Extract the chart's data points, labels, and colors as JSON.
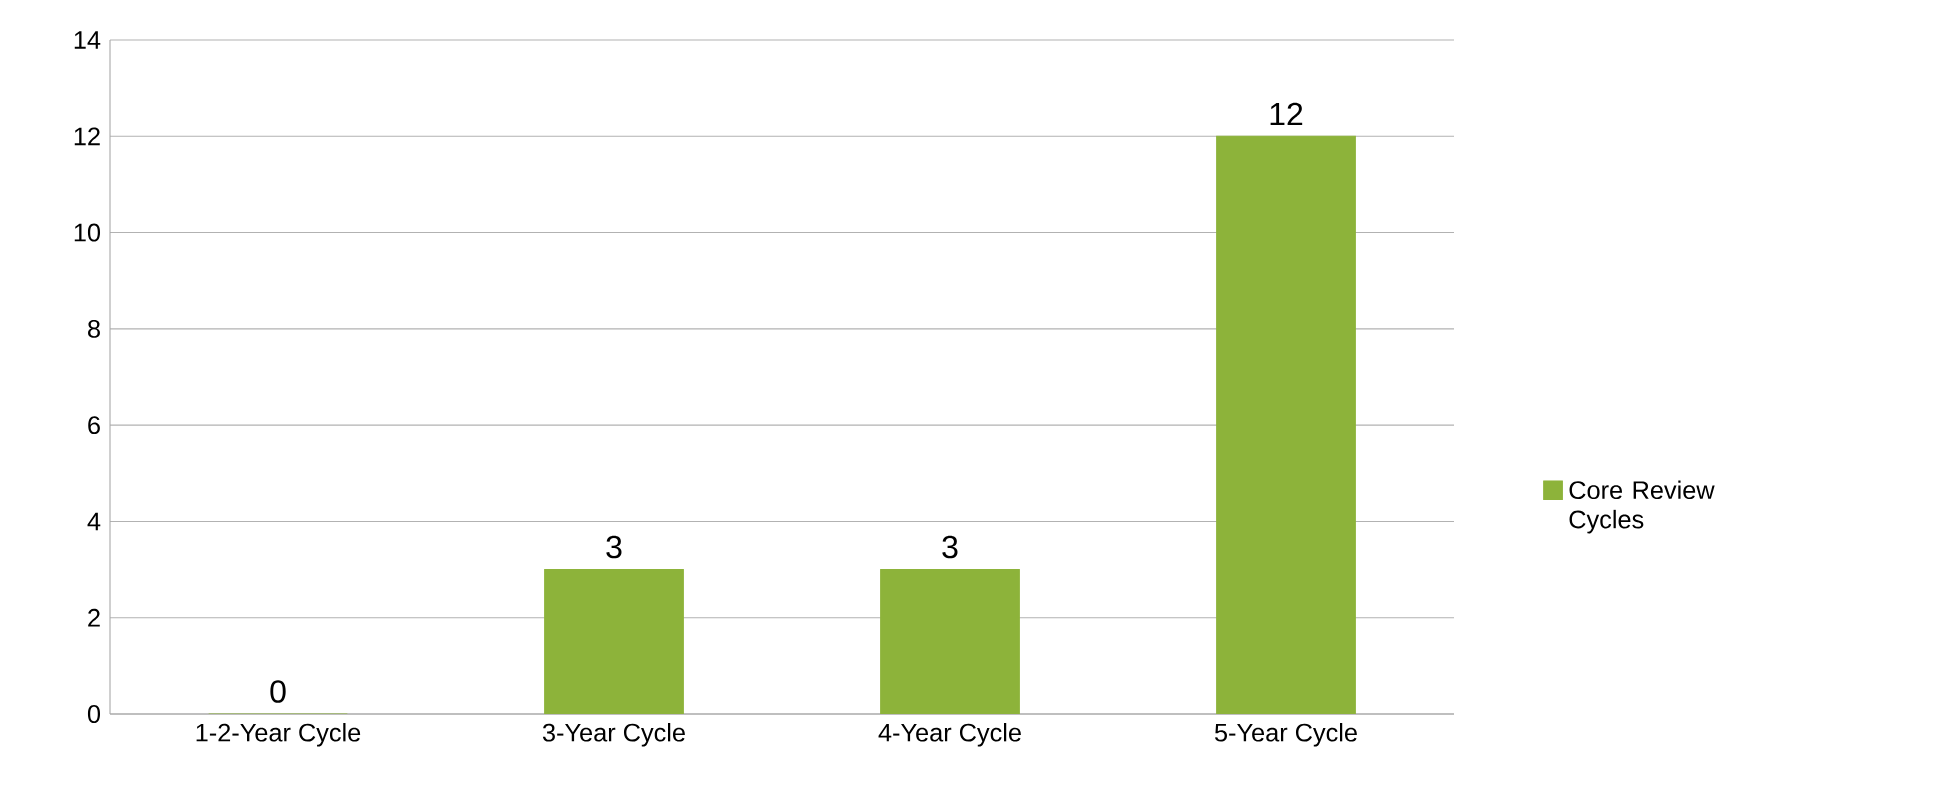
{
  "chart_data": {
    "type": "bar",
    "categories": [
      "1-2-Year Cycle",
      "3-Year Cycle",
      "4-Year Cycle",
      "5-Year Cycle"
    ],
    "series": [
      {
        "name": "Core Review Cycles",
        "color": "#8db33a",
        "values": [
          0,
          3,
          3,
          12
        ]
      }
    ],
    "ylim": [
      0,
      14
    ],
    "yticks": [
      0,
      2,
      4,
      6,
      8,
      10,
      12,
      14
    ],
    "grid": "y",
    "legend": "right",
    "data_labels": true
  }
}
